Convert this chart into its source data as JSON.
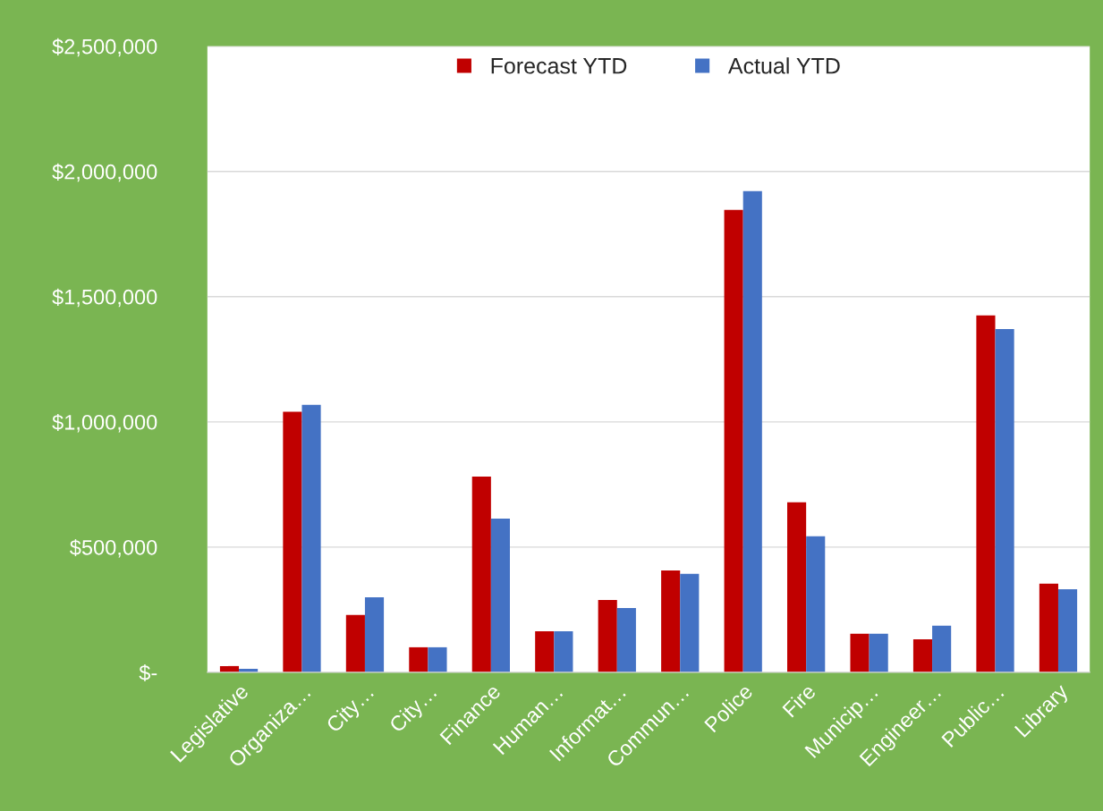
{
  "chart_data": {
    "type": "bar",
    "categories": [
      "Legislative",
      "Organiza…",
      "City…",
      "City…",
      "Finance",
      "Human…",
      "Informat…",
      "Commun…",
      "Police",
      "Fire",
      "Municip…",
      "Engineer…",
      "Public…",
      "Library"
    ],
    "series": [
      {
        "name": "Forecast YTD",
        "color": "#c00000",
        "values": [
          25000,
          1040000,
          229000,
          100000,
          782000,
          164000,
          289000,
          407000,
          1846000,
          679000,
          154000,
          132000,
          1425000,
          354000
        ]
      },
      {
        "name": "Actual YTD",
        "color": "#4472c4",
        "values": [
          14000,
          1068000,
          300000,
          100000,
          614000,
          164000,
          257000,
          393000,
          1921000,
          543000,
          154000,
          186000,
          1371000,
          332000
        ]
      }
    ],
    "ylim": [
      0,
      2500000
    ],
    "yticks": [
      {
        "value": 0,
        "label": "$-"
      },
      {
        "value": 500000,
        "label": "$500,000"
      },
      {
        "value": 1000000,
        "label": "$1,000,000"
      },
      {
        "value": 1500000,
        "label": "$1,500,000"
      },
      {
        "value": 2000000,
        "label": "$2,000,000"
      },
      {
        "value": 2500000,
        "label": "$2,500,000"
      }
    ],
    "grid": "y",
    "legend": "top"
  }
}
